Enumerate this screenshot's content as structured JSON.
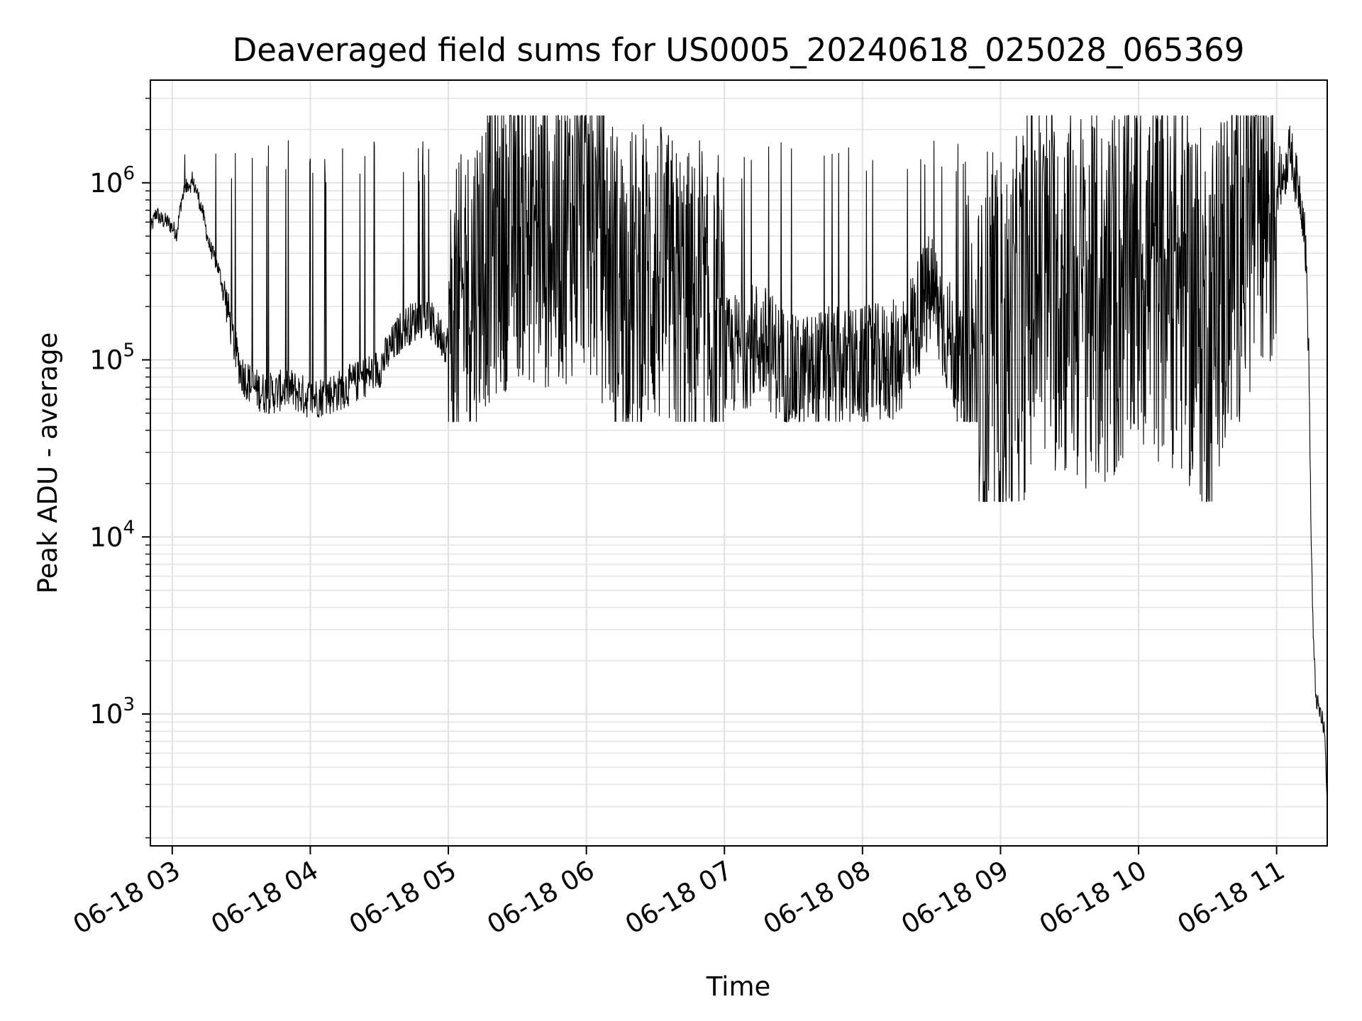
{
  "chart_data": {
    "type": "line",
    "title": "Deaveraged field sums for US0005_20240618_025028_065369",
    "xlabel": "Time",
    "ylabel": "Peak ADU - average",
    "yscale": "log",
    "ylim": [
      180,
      3800000
    ],
    "xlim": [
      "06-18 02:50:30",
      "06-18 11:22:00"
    ],
    "grid": true,
    "x_ticks": [
      "06-18 03",
      "06-18 04",
      "06-18 05",
      "06-18 06",
      "06-18 07",
      "06-18 08",
      "06-18 09",
      "06-18 10",
      "06-18 11"
    ],
    "y_ticks": [
      {
        "base": "10",
        "exp": "3",
        "value": 1000
      },
      {
        "base": "10",
        "exp": "4",
        "value": 10000
      },
      {
        "base": "10",
        "exp": "5",
        "value": 100000
      },
      {
        "base": "10",
        "exp": "6",
        "value": 1000000
      }
    ],
    "series": [
      {
        "color": "#000000",
        "points": [
          [
            "06-18 02:51",
            560000
          ],
          [
            "06-18 02:53",
            680000
          ],
          [
            "06-18 02:55",
            620000
          ],
          [
            "06-18 02:58",
            600000
          ],
          [
            "06-18 03:00",
            560000
          ],
          [
            "06-18 03:02",
            520000
          ],
          [
            "06-18 03:04",
            800000
          ],
          [
            "06-18 03:07",
            1000000
          ],
          [
            "06-18 03:10",
            950000
          ],
          [
            "06-18 03:13",
            700000
          ],
          [
            "06-18 03:16",
            450000
          ],
          [
            "06-18 03:20",
            330000
          ],
          [
            "06-18 03:24",
            200000
          ],
          [
            "06-18 03:27",
            120000
          ],
          [
            "06-18 03:30",
            85000
          ],
          [
            "06-18 03:35",
            70000
          ],
          [
            "06-18 03:40",
            65000
          ],
          [
            "06-18 03:45",
            65000
          ],
          [
            "06-18 03:50",
            70000
          ],
          [
            "06-18 03:55",
            65000
          ],
          [
            "06-18 04:00",
            60000
          ],
          [
            "06-18 04:10",
            65000
          ],
          [
            "06-18 04:20",
            75000
          ],
          [
            "06-18 04:30",
            90000
          ],
          [
            "06-18 04:40",
            150000
          ],
          [
            "06-18 04:50",
            180000
          ],
          [
            "06-18 05:00",
            120000
          ],
          [
            "06-18 05:15",
            400000
          ],
          [
            "06-18 05:30",
            600000
          ],
          [
            "06-18 05:45",
            500000
          ],
          [
            "06-18 06:00",
            700000
          ],
          [
            "06-18 06:15",
            250000
          ],
          [
            "06-18 06:30",
            300000
          ],
          [
            "06-18 06:45",
            200000
          ],
          [
            "06-18 07:00",
            100000
          ],
          [
            "06-18 07:15",
            130000
          ],
          [
            "06-18 07:30",
            80000
          ],
          [
            "06-18 07:45",
            90000
          ],
          [
            "06-18 08:00",
            90000
          ],
          [
            "06-18 08:15",
            100000
          ],
          [
            "06-18 08:30",
            250000
          ],
          [
            "06-18 08:45",
            70000
          ],
          [
            "06-18 09:00",
            80000
          ],
          [
            "06-18 09:15",
            300000
          ],
          [
            "06-18 09:30",
            250000
          ],
          [
            "06-18 09:45",
            200000
          ],
          [
            "06-18 10:00",
            350000
          ],
          [
            "06-18 10:15",
            300000
          ],
          [
            "06-18 10:30",
            150000
          ],
          [
            "06-18 10:45",
            600000
          ],
          [
            "06-18 10:55",
            800000
          ],
          [
            "06-18 11:00",
            900000
          ],
          [
            "06-18 11:04",
            1200000
          ],
          [
            "06-18 11:06",
            1600000
          ],
          [
            "06-18 11:08",
            1100000
          ],
          [
            "06-18 11:10",
            900000
          ],
          [
            "06-18 11:12",
            600000
          ],
          [
            "06-18 11:13",
            300000
          ],
          [
            "06-18 11:14",
            100000
          ],
          [
            "06-18 11:15",
            10000
          ],
          [
            "06-18 11:16",
            2500
          ],
          [
            "06-18 11:17",
            1300
          ],
          [
            "06-18 11:18",
            1100
          ],
          [
            "06-18 11:19",
            1000
          ],
          [
            "06-18 11:20",
            900
          ],
          [
            "06-18 11:21",
            750
          ],
          [
            "06-18 11:22",
            280
          ]
        ]
      }
    ]
  }
}
